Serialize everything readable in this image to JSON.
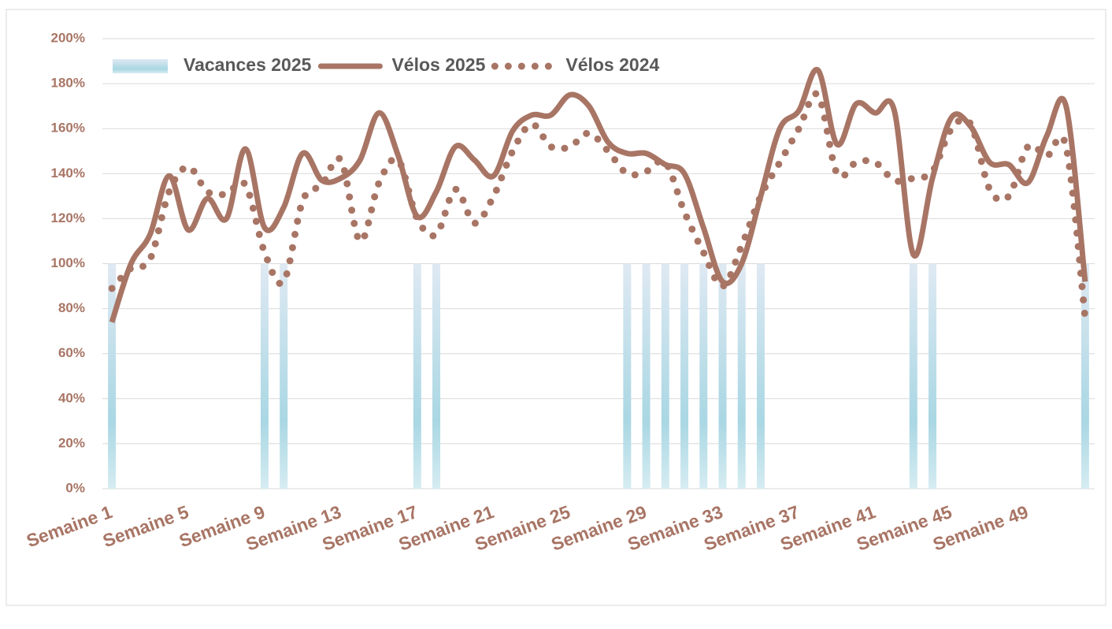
{
  "chart_data": {
    "type": "bar-line",
    "categories": [
      "Semaine 1",
      null,
      null,
      null,
      "Semaine 5",
      null,
      null,
      null,
      "Semaine 9",
      null,
      null,
      null,
      "Semaine 13",
      null,
      null,
      null,
      "Semaine 17",
      null,
      null,
      null,
      "Semaine 21",
      null,
      null,
      null,
      "Semaine 25",
      null,
      null,
      null,
      "Semaine 29",
      null,
      null,
      null,
      "Semaine 33",
      null,
      null,
      null,
      "Semaine 37",
      null,
      null,
      null,
      "Semaine 41",
      null,
      null,
      null,
      "Semaine 45",
      null,
      null,
      null,
      "Semaine 49",
      null,
      null,
      null
    ],
    "series": [
      {
        "name": "Vacances 2025",
        "type": "bar",
        "color": "#a8d8e4",
        "values": [
          100,
          0,
          0,
          0,
          0,
          0,
          0,
          0,
          100,
          100,
          0,
          0,
          0,
          0,
          0,
          0,
          100,
          100,
          0,
          0,
          0,
          0,
          0,
          0,
          0,
          0,
          0,
          100,
          100,
          100,
          100,
          100,
          100,
          100,
          100,
          0,
          0,
          0,
          0,
          0,
          0,
          0,
          100,
          100,
          0,
          0,
          0,
          0,
          0,
          0,
          0,
          100
        ]
      },
      {
        "name": "Vélos 2025",
        "type": "line",
        "color": "#a87565",
        "values": [
          74,
          100,
          113,
          139,
          115,
          129,
          120,
          151,
          116,
          125,
          149,
          137,
          138,
          146,
          167,
          148,
          121,
          132,
          152,
          146,
          139,
          159,
          166,
          166,
          175,
          170,
          154,
          149,
          149,
          144,
          140,
          116,
          92,
          100,
          130,
          160,
          168,
          186,
          153,
          171,
          167,
          168,
          104,
          138,
          165,
          161,
          145,
          144,
          136,
          157,
          170,
          92
        ]
      },
      {
        "name": "Vélos 2024",
        "type": "dotted",
        "color": "#a87565",
        "values": [
          89,
          98,
          102,
          132,
          143,
          132,
          131,
          135,
          105,
          92,
          128,
          135,
          146,
          110,
          136,
          146,
          120,
          113,
          133,
          118,
          130,
          150,
          162,
          152,
          152,
          158,
          150,
          140,
          141,
          145,
          123,
          105,
          90,
          108,
          130,
          145,
          160,
          175,
          140,
          145,
          145,
          137,
          138,
          141,
          160,
          162,
          133,
          130,
          152,
          148,
          152,
          76
        ]
      }
    ],
    "ylim": [
      0,
      200
    ],
    "yticks": [
      {
        "value": 0,
        "label": "0%"
      },
      {
        "value": 20,
        "label": "20%"
      },
      {
        "value": 40,
        "label": "40%"
      },
      {
        "value": 60,
        "label": "60%"
      },
      {
        "value": 80,
        "label": "80%"
      },
      {
        "value": 100,
        "label": "100%"
      },
      {
        "value": 120,
        "label": "120%"
      },
      {
        "value": 140,
        "label": "140%"
      },
      {
        "value": 160,
        "label": "160%"
      },
      {
        "value": 180,
        "label": "180%"
      },
      {
        "value": 200,
        "label": "200%"
      }
    ],
    "grid": true,
    "legend": "top-left"
  }
}
